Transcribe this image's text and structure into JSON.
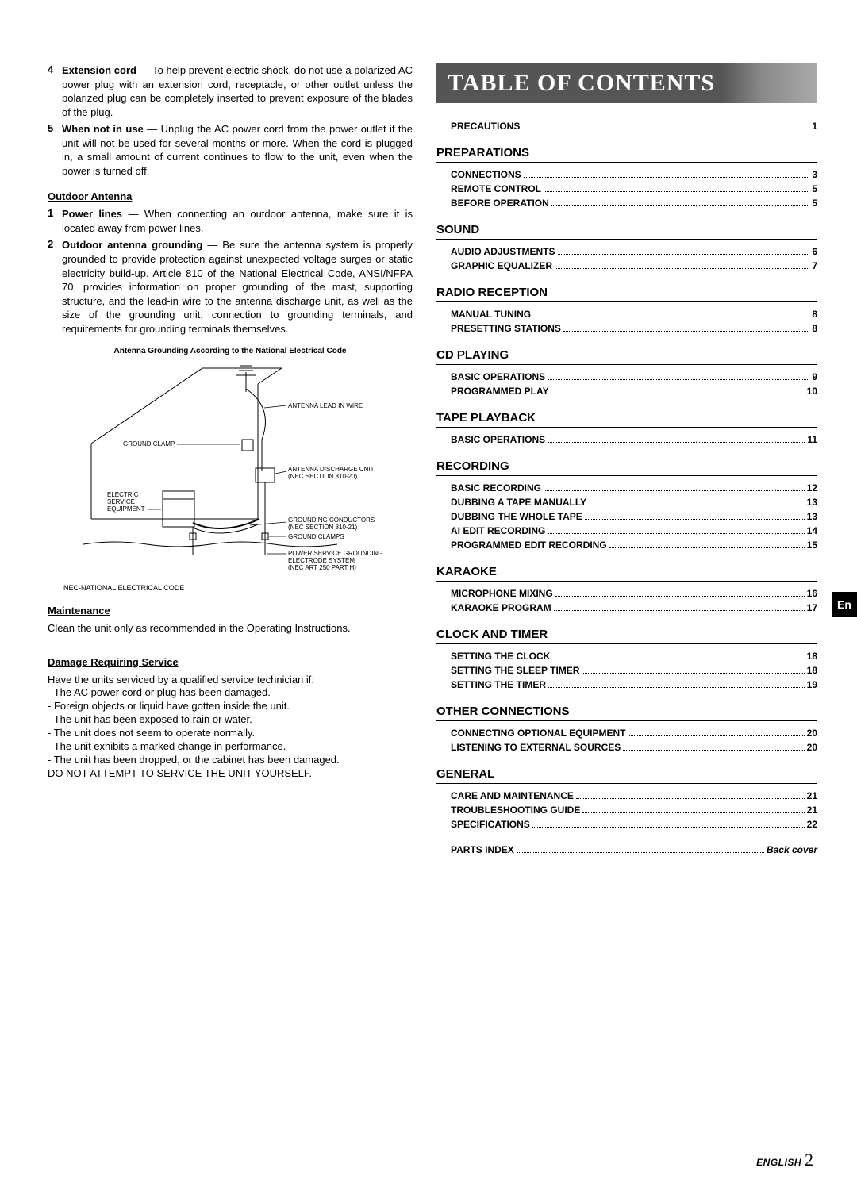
{
  "left": {
    "items45": [
      {
        "num": "4",
        "bold": "Extension cord",
        "text": " — To help prevent electric shock, do not use a polarized AC power plug with an extension cord, receptacle, or other outlet unless the polarized plug can be completely inserted to prevent exposure of the blades of the plug."
      },
      {
        "num": "5",
        "bold": "When not in use",
        "text": " — Unplug the AC power cord from the power outlet if the unit will not be used for several months or more. When the cord is plugged in, a small amount of current continues to flow to the unit, even when the power is turned off."
      }
    ],
    "outdoor_title": "Outdoor Antenna",
    "outdoor_items": [
      {
        "num": "1",
        "bold": "Power lines",
        "text": " — When connecting an outdoor antenna, make sure it is located away from power lines."
      },
      {
        "num": "2",
        "bold": "Outdoor antenna grounding",
        "text": " — Be sure the antenna system is properly grounded to provide protection against unexpected voltage surges or static electricity build-up. Article 810 of the National Electrical Code, ANSI/NFPA 70, provides information on proper grounding of the mast, supporting structure, and the lead-in wire to the antenna discharge unit, as well as the size of the grounding unit, connection to grounding terminals, and requirements for grounding terminals themselves."
      }
    ],
    "diagram_caption": "Antenna Grounding According to the National Electrical Code",
    "diagram": {
      "labels": {
        "antenna_lead": "ANTENNA LEAD IN WIRE",
        "ground_clamp": "GROUND CLAMP",
        "discharge": "ANTENNA DISCHARGE UNIT\n(NEC SECTION 810-20)",
        "electric_service": "ELECTRIC\nSERVICE\nEQUIPMENT",
        "conductors": "GROUNDING CONDUCTORS\n(NEC SECTION 810-21)",
        "ground_clamps2": "GROUND CLAMPS",
        "power_service": "POWER SERVICE GROUNDING\nELECTRODE SYSTEM\n(NEC ART 250 PART H)",
        "nec": "NEC-NATIONAL ELECTRICAL CODE"
      }
    },
    "maintenance_title": "Maintenance",
    "maintenance_text": "Clean the unit only as recommended in the Operating Instructions.",
    "damage_title": "Damage Requiring Service",
    "damage_intro": "Have the units serviced by a qualified service technician if:",
    "damage_list": [
      "- The AC power cord or plug has been damaged.",
      "- Foreign objects or liquid have gotten inside the unit.",
      "- The unit has been exposed to rain or water.",
      "- The unit does not seem to operate normally.",
      "- The unit exhibits a marked change in performance.",
      "- The unit has been dropped, or the cabinet has been damaged."
    ],
    "do_not": "DO NOT ATTEMPT TO SERVICE THE UNIT YOURSELF."
  },
  "toc": {
    "banner": "TABLE OF CONTENTS",
    "top": [
      {
        "label": "PRECAUTIONS",
        "page": "1"
      }
    ],
    "sections": [
      {
        "title": "PREPARATIONS",
        "items": [
          {
            "label": "CONNECTIONS",
            "page": "3"
          },
          {
            "label": "REMOTE CONTROL",
            "page": "5"
          },
          {
            "label": "BEFORE OPERATION",
            "page": "5"
          }
        ]
      },
      {
        "title": "SOUND",
        "items": [
          {
            "label": "AUDIO ADJUSTMENTS",
            "page": "6"
          },
          {
            "label": "GRAPHIC EQUALIZER",
            "page": "7"
          }
        ]
      },
      {
        "title": "RADIO RECEPTION",
        "items": [
          {
            "label": "MANUAL TUNING",
            "page": "8"
          },
          {
            "label": "PRESETTING STATIONS",
            "page": "8"
          }
        ]
      },
      {
        "title": "CD PLAYING",
        "items": [
          {
            "label": "BASIC OPERATIONS",
            "page": "9"
          },
          {
            "label": "PROGRAMMED PLAY",
            "page": "10"
          }
        ]
      },
      {
        "title": "TAPE PLAYBACK",
        "items": [
          {
            "label": "BASIC OPERATIONS",
            "page": "11"
          }
        ]
      },
      {
        "title": "RECORDING",
        "items": [
          {
            "label": "BASIC RECORDING",
            "page": "12"
          },
          {
            "label": "DUBBING A TAPE MANUALLY",
            "page": "13"
          },
          {
            "label": "DUBBING THE WHOLE TAPE",
            "page": "13"
          },
          {
            "label": "AI EDIT RECORDING",
            "page": "14"
          },
          {
            "label": "PROGRAMMED EDIT RECORDING",
            "page": "15"
          }
        ]
      },
      {
        "title": "KARAOKE",
        "items": [
          {
            "label": "MICROPHONE MIXING",
            "page": "16"
          },
          {
            "label": "KARAOKE PROGRAM",
            "page": "17"
          }
        ]
      },
      {
        "title": "CLOCK AND TIMER",
        "items": [
          {
            "label": "SETTING THE CLOCK",
            "page": "18"
          },
          {
            "label": "SETTING THE SLEEP TIMER",
            "page": "18"
          },
          {
            "label": "SETTING THE TIMER",
            "page": "19"
          }
        ]
      },
      {
        "title": "OTHER CONNECTIONS",
        "items": [
          {
            "label": "CONNECTING OPTIONAL EQUIPMENT",
            "page": "20"
          },
          {
            "label": "LISTENING TO EXTERNAL SOURCES",
            "page": "20"
          }
        ]
      },
      {
        "title": "GENERAL",
        "items": [
          {
            "label": "CARE AND MAINTENANCE",
            "page": "21"
          },
          {
            "label": "TROUBLESHOOTING GUIDE",
            "page": "21"
          },
          {
            "label": "SPECIFICATIONS",
            "page": "22"
          }
        ]
      }
    ],
    "tail": [
      {
        "label": "PARTS INDEX",
        "page": "Back cover",
        "italic": true
      }
    ]
  },
  "side_tab": "En",
  "footer": {
    "eng": "ENGLISH",
    "num": "2"
  }
}
